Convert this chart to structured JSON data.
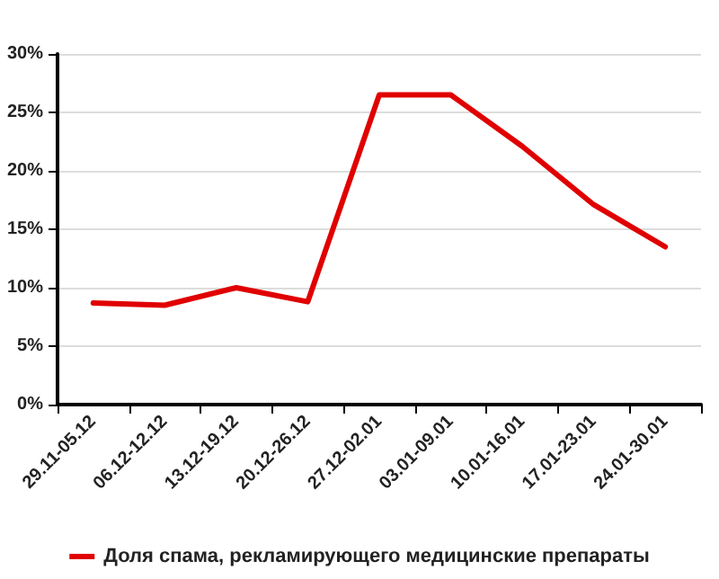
{
  "chart_data": {
    "type": "line",
    "categories": [
      "29.11-05.12",
      "06.12-12.12",
      "13.12-19.12",
      "20.12-26.12",
      "27.12-02.01",
      "03.01-09.01",
      "10.01-16.01",
      "17.01-23.01",
      "24.01-30.01"
    ],
    "series": [
      {
        "name": "Доля спама, рекламирующего медицинские препараты",
        "color": "#e00000",
        "values": [
          8.7,
          8.5,
          10.0,
          8.8,
          26.5,
          26.5,
          22.1,
          17.1,
          13.5
        ]
      }
    ],
    "ylim": [
      0,
      30
    ],
    "yticks": [
      {
        "value": 0,
        "label": "0%"
      },
      {
        "value": 5,
        "label": "5%"
      },
      {
        "value": 10,
        "label": "10%"
      },
      {
        "value": 15,
        "label": "15%"
      },
      {
        "value": 20,
        "label": "20%"
      },
      {
        "value": 25,
        "label": "25%"
      },
      {
        "value": 30,
        "label": "30%"
      }
    ],
    "grid": "y",
    "legend": "bottom",
    "marker": "none",
    "line_style": "solid"
  }
}
